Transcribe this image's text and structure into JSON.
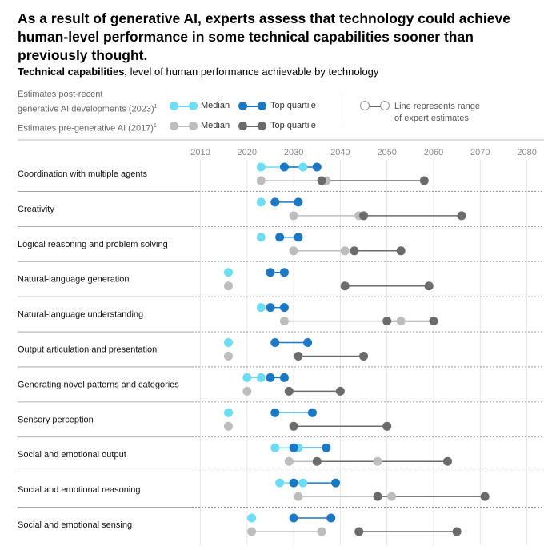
{
  "headline": "As a result of generative AI, experts assess that technology could achieve human-level performance in some technical capabilities sooner than previously thought.",
  "subtitle": {
    "bold": "Technical capabilities,",
    "rest": " level of human performance achievable by technology"
  },
  "legend": {
    "post_label_line1": "Estimates post-recent",
    "post_label_line2": "generative AI developments (2023)",
    "pre_label": "Estimates pre-generative AI (2017)",
    "footnote_marker": "1",
    "median": "Median",
    "top_quartile": "Top quartile",
    "range_note_line1": "Line represents range",
    "range_note_line2": "of expert estimates"
  },
  "colors": {
    "post_median": "#6ddcf5",
    "post_top": "#1b78c4",
    "pre_median": "#bdbdbd",
    "pre_top": "#6b6b6b",
    "separator": "#888888",
    "grid": "#e6e6e6"
  },
  "chart_data": {
    "type": "scatter",
    "xlim": [
      2005,
      2080
    ],
    "x_ticks": [
      2010,
      2020,
      2030,
      2040,
      2050,
      2060,
      2070,
      2080
    ],
    "grid": true,
    "rows": [
      {
        "label": "Coordination with multiple agents",
        "post2023": {
          "median": [
            2023,
            2032
          ],
          "top_quartile": [
            2028,
            2035
          ]
        },
        "pre2017": {
          "median": [
            2023,
            2037
          ],
          "top_quartile": [
            2036,
            2058
          ]
        }
      },
      {
        "label": "Creativity",
        "post2023": {
          "median": [
            2023
          ],
          "top_quartile": [
            2026,
            2031
          ]
        },
        "pre2017": {
          "median": [
            2030,
            2044
          ],
          "top_quartile": [
            2045,
            2066
          ]
        }
      },
      {
        "label": "Logical reasoning and problem solving",
        "post2023": {
          "median": [
            2023
          ],
          "top_quartile": [
            2027,
            2031
          ]
        },
        "pre2017": {
          "median": [
            2030,
            2041
          ],
          "top_quartile": [
            2043,
            2053
          ]
        }
      },
      {
        "label": "Natural-language generation",
        "post2023": {
          "median": [
            2016
          ],
          "top_quartile": [
            2025,
            2028
          ]
        },
        "pre2017": {
          "median": [
            2016
          ],
          "top_quartile": [
            2041,
            2059
          ]
        }
      },
      {
        "label": "Natural-language understanding",
        "post2023": {
          "median": [
            2023
          ],
          "top_quartile": [
            2025,
            2028
          ]
        },
        "pre2017": {
          "median": [
            2028,
            2053
          ],
          "top_quartile": [
            2050,
            2060
          ]
        }
      },
      {
        "label": "Output articulation and presentation",
        "post2023": {
          "median": [
            2016
          ],
          "top_quartile": [
            2026,
            2033
          ]
        },
        "pre2017": {
          "median": [
            2016
          ],
          "top_quartile": [
            2031,
            2045
          ]
        }
      },
      {
        "label": "Generating novel patterns and categories",
        "post2023": {
          "median": [
            2020,
            2023
          ],
          "top_quartile": [
            2025,
            2028
          ]
        },
        "pre2017": {
          "median": [
            2020
          ],
          "top_quartile": [
            2029,
            2040
          ]
        }
      },
      {
        "label": "Sensory perception",
        "post2023": {
          "median": [
            2016
          ],
          "top_quartile": [
            2026,
            2034
          ]
        },
        "pre2017": {
          "median": [
            2016
          ],
          "top_quartile": [
            2030,
            2050
          ]
        }
      },
      {
        "label": "Social and emotional output",
        "post2023": {
          "median": [
            2026,
            2031
          ],
          "top_quartile": [
            2030,
            2037
          ]
        },
        "pre2017": {
          "median": [
            2029,
            2048
          ],
          "top_quartile": [
            2035,
            2063
          ]
        }
      },
      {
        "label": "Social and emotional reasoning",
        "post2023": {
          "median": [
            2027,
            2032
          ],
          "top_quartile": [
            2030,
            2039
          ]
        },
        "pre2017": {
          "median": [
            2031,
            2051
          ],
          "top_quartile": [
            2048,
            2071
          ]
        }
      },
      {
        "label": "Social and emotional sensing",
        "post2023": {
          "median": [
            2021
          ],
          "top_quartile": [
            2030,
            2038
          ]
        },
        "pre2017": {
          "median": [
            2021,
            2036
          ],
          "top_quartile": [
            2044,
            2065
          ]
        }
      }
    ]
  }
}
